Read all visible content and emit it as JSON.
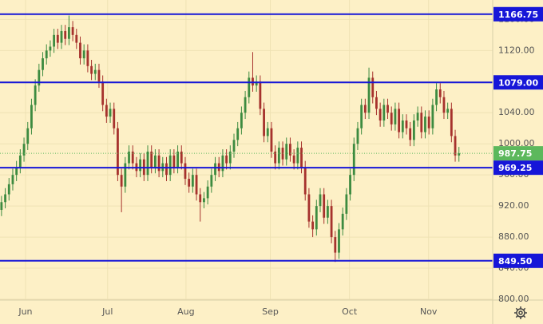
{
  "chart_data": {
    "type": "candlestick",
    "open": [
      915,
      925,
      935,
      948,
      960,
      970,
      985,
      1000,
      1020,
      1050,
      1075,
      1095,
      1110,
      1120,
      1125,
      1140,
      1130,
      1145,
      1135,
      1150,
      1140,
      1130,
      1110,
      1120,
      1100,
      1090,
      1095,
      1080,
      1050,
      1035,
      1045,
      1020,
      960,
      945,
      975,
      990,
      975,
      965,
      980,
      960,
      990,
      970,
      985,
      965,
      975,
      960,
      985,
      970,
      990,
      975,
      955,
      945,
      960,
      935,
      925,
      930,
      945,
      960,
      975,
      965,
      985,
      975,
      990,
      1005,
      1020,
      1040,
      1060,
      1085,
      1075,
      1080,
      1045,
      1010,
      1020,
      990,
      975,
      995,
      980,
      1000,
      985,
      975,
      995,
      970,
      935,
      900,
      890,
      920,
      935,
      905,
      920,
      880,
      860,
      890,
      910,
      935,
      960,
      1000,
      1020,
      1050,
      1040,
      1085,
      1060,
      1045,
      1030,
      1050,
      1040,
      1025,
      1045,
      1015,
      1030,
      1020,
      1005,
      1030,
      1040,
      1015,
      1035,
      1020,
      1050,
      1070,
      1060,
      1040,
      1045,
      1010,
      985
    ],
    "high": [
      933,
      943,
      956,
      968,
      978,
      993,
      1008,
      1028,
      1058,
      1083,
      1103,
      1118,
      1128,
      1133,
      1148,
      1148,
      1153,
      1153,
      1165,
      1158,
      1148,
      1138,
      1128,
      1128,
      1108,
      1103,
      1103,
      1088,
      1058,
      1053,
      1053,
      1028,
      968,
      983,
      998,
      998,
      983,
      988,
      988,
      998,
      998,
      993,
      993,
      983,
      983,
      993,
      993,
      998,
      998,
      983,
      963,
      968,
      968,
      943,
      938,
      953,
      968,
      983,
      983,
      993,
      993,
      998,
      1013,
      1028,
      1048,
      1068,
      1093,
      1118,
      1088,
      1088,
      1053,
      1028,
      1028,
      998,
      1003,
      1003,
      1008,
      1008,
      993,
      1003,
      1003,
      978,
      943,
      908,
      928,
      943,
      943,
      928,
      928,
      888,
      898,
      918,
      943,
      968,
      1008,
      1028,
      1058,
      1058,
      1098,
      1093,
      1068,
      1053,
      1058,
      1058,
      1048,
      1053,
      1053,
      1038,
      1038,
      1028,
      1038,
      1048,
      1048,
      1043,
      1043,
      1058,
      1078,
      1078,
      1068,
      1053,
      1053,
      1018,
      996
    ],
    "low": [
      907,
      917,
      927,
      940,
      952,
      962,
      977,
      992,
      1012,
      1042,
      1067,
      1087,
      1102,
      1112,
      1117,
      1122,
      1122,
      1127,
      1127,
      1132,
      1122,
      1102,
      1102,
      1092,
      1082,
      1082,
      1072,
      1042,
      1027,
      1027,
      1012,
      952,
      912,
      937,
      967,
      967,
      957,
      957,
      952,
      952,
      962,
      962,
      957,
      957,
      952,
      952,
      962,
      962,
      967,
      947,
      937,
      937,
      927,
      900,
      917,
      922,
      937,
      952,
      957,
      957,
      967,
      967,
      982,
      997,
      1012,
      1032,
      1052,
      1067,
      1067,
      1037,
      1002,
      1002,
      982,
      967,
      967,
      972,
      972,
      977,
      967,
      967,
      962,
      927,
      892,
      880,
      882,
      912,
      897,
      897,
      872,
      848,
      852,
      882,
      902,
      927,
      952,
      992,
      1012,
      1032,
      1032,
      1052,
      1037,
      1022,
      1022,
      1032,
      1017,
      1017,
      1007,
      1007,
      1012,
      997,
      997,
      1022,
      1007,
      1007,
      1012,
      1012,
      1042,
      1052,
      1032,
      1032,
      1002,
      977,
      977
    ],
    "close": [
      925,
      935,
      948,
      960,
      970,
      985,
      1000,
      1020,
      1050,
      1075,
      1095,
      1110,
      1120,
      1125,
      1140,
      1130,
      1145,
      1135,
      1150,
      1140,
      1130,
      1110,
      1120,
      1100,
      1090,
      1095,
      1080,
      1050,
      1035,
      1045,
      1020,
      960,
      945,
      975,
      990,
      975,
      965,
      980,
      960,
      990,
      970,
      985,
      965,
      975,
      960,
      985,
      970,
      990,
      975,
      955,
      945,
      960,
      935,
      925,
      930,
      945,
      960,
      975,
      965,
      985,
      975,
      990,
      1005,
      1020,
      1040,
      1060,
      1085,
      1075,
      1080,
      1045,
      1010,
      1020,
      990,
      975,
      995,
      980,
      1000,
      985,
      975,
      995,
      970,
      935,
      900,
      890,
      920,
      935,
      905,
      920,
      880,
      860,
      890,
      910,
      935,
      960,
      1000,
      1020,
      1050,
      1040,
      1085,
      1060,
      1045,
      1030,
      1050,
      1040,
      1025,
      1045,
      1015,
      1030,
      1020,
      1005,
      1030,
      1040,
      1015,
      1035,
      1020,
      1050,
      1070,
      1060,
      1040,
      1045,
      1010,
      985,
      987.75
    ],
    "xlim": [
      -0.4,
      131
    ],
    "xticks": [
      {
        "value": 6.4,
        "label": "Jun"
      },
      {
        "value": 28.3,
        "label": "Jul"
      },
      {
        "value": 49.2,
        "label": "Aug"
      },
      {
        "value": 71.7,
        "label": "Sep"
      },
      {
        "value": 92.8,
        "label": "Oct"
      },
      {
        "value": 113.9,
        "label": "Nov"
      }
    ],
    "ylim": [
      799,
      1185
    ],
    "yticks": [
      {
        "value": 800,
        "label": "800.00"
      },
      {
        "value": 840,
        "label": "840.00"
      },
      {
        "value": 880,
        "label": "880.00"
      },
      {
        "value": 920,
        "label": "920.00"
      },
      {
        "value": 960,
        "label": "960.00"
      },
      {
        "value": 1000,
        "label": "1000.00"
      },
      {
        "value": 1040,
        "label": "1040.00"
      },
      {
        "value": 1080,
        "label": "1080.00"
      },
      {
        "value": 1120,
        "label": "1120.00"
      },
      {
        "value": 1160,
        "label": "1160.00"
      }
    ],
    "levels": [
      {
        "value": 1166.75,
        "label": "1166.75"
      },
      {
        "value": 1079.0,
        "label": "1079.00"
      },
      {
        "value": 969.25,
        "label": "969.25"
      },
      {
        "value": 849.5,
        "label": "849.50"
      }
    ],
    "last_price": {
      "value": 987.75,
      "label": "987.75"
    },
    "up_color": "#3d8b40",
    "down_color": "#a6322d",
    "level_color": "#1616d8",
    "last_color": "#5cb85c",
    "background": "#fdf0c6",
    "grid": true
  }
}
